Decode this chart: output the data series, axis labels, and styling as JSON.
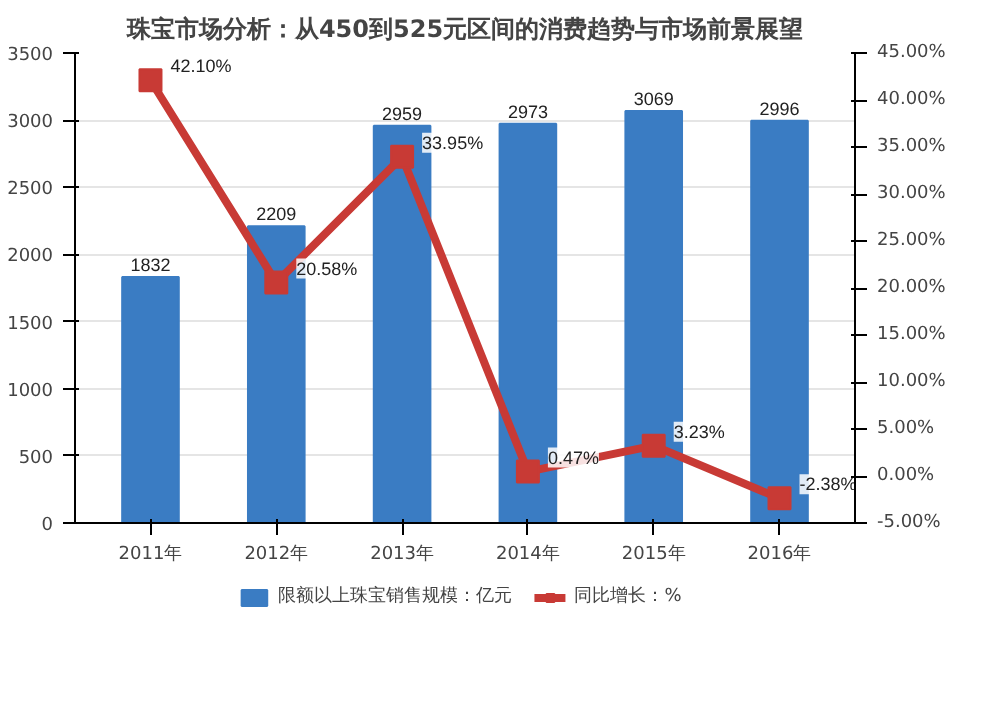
{
  "chart_data": {
    "type": "bar",
    "title": "珠宝市场分析：从450到525元区间的消费趋势与市场前景展望",
    "categories": [
      "2011年",
      "2012年",
      "2013年",
      "2014年",
      "2015年",
      "2016年"
    ],
    "series": [
      {
        "name": "限额以上珠宝销售规模：亿元",
        "color": "#3a7cc3",
        "values": [
          1832,
          2209,
          2959,
          2973,
          3069,
          2996
        ],
        "value_labels": [
          "1832",
          "2209",
          "2959",
          "2973",
          "3069",
          "2996"
        ]
      },
      {
        "name": "同比增长：%",
        "color": "#c83a35",
        "type": "line",
        "axis": "y2",
        "marker": "square",
        "values": [
          42.1,
          20.58,
          33.95,
          0.47,
          3.23,
          -2.38
        ],
        "value_labels": [
          "42.10%",
          "20.58%",
          "33.95%",
          "0.47%",
          "3.23%",
          "-2.38%"
        ]
      }
    ],
    "ylim": [
      0,
      3500
    ],
    "yticks": [
      0,
      500,
      1000,
      1500,
      2000,
      2500,
      3000,
      3500
    ],
    "y2lim": [
      -5,
      45
    ],
    "y2ticks": [
      {
        "value": -5,
        "label": "-5.00%"
      },
      {
        "value": 0,
        "label": "0.00%"
      },
      {
        "value": 5,
        "label": "5.00%"
      },
      {
        "value": 10,
        "label": "10.00%"
      },
      {
        "value": 15,
        "label": "15.00%"
      },
      {
        "value": 20,
        "label": "20.00%"
      },
      {
        "value": 25,
        "label": "25.00%"
      },
      {
        "value": 30,
        "label": "30.00%"
      },
      {
        "value": 35,
        "label": "35.00%"
      },
      {
        "value": 40,
        "label": "40.00%"
      },
      {
        "value": 45,
        "label": "45.00%"
      }
    ],
    "grid": "y",
    "legend": "bottom"
  }
}
